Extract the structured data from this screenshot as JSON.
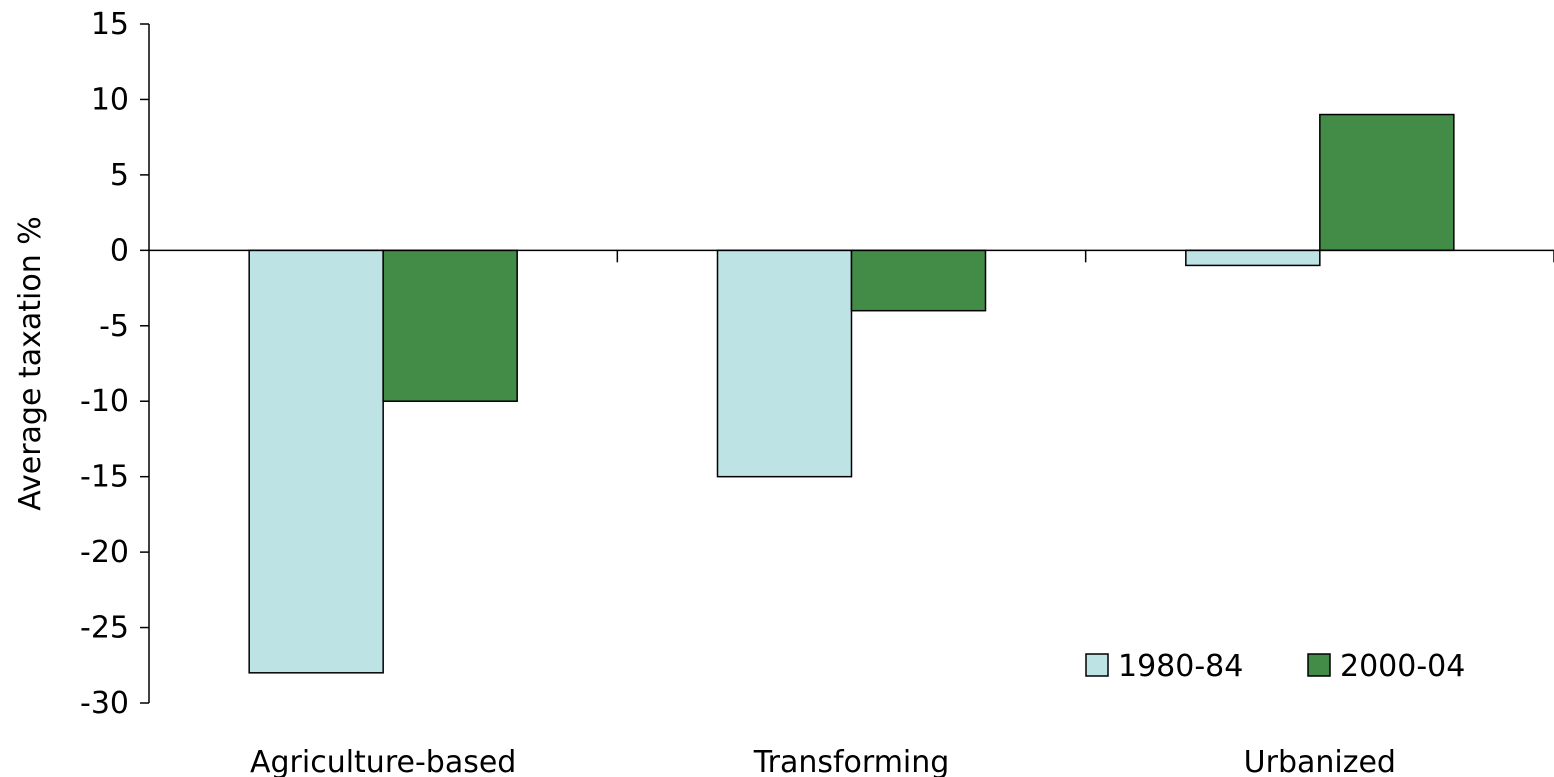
{
  "chart_data": {
    "type": "bar",
    "categories": [
      "Agriculture-based",
      "Transforming",
      "Urbanized"
    ],
    "series": [
      {
        "name": "1980-84",
        "color": "#bde3e5",
        "values": [
          -28,
          -15,
          -1
        ]
      },
      {
        "name": "2000-04",
        "color": "#438c47",
        "values": [
          -10,
          -4,
          9
        ]
      }
    ],
    "ylabel": "Average taxation %",
    "xlabel": "",
    "ylim": [
      -30,
      15
    ],
    "yticks": [
      15,
      10,
      5,
      0,
      -5,
      -10,
      -15,
      -20,
      -25,
      -30
    ],
    "grid": false,
    "legend_position": "bottom-right"
  }
}
